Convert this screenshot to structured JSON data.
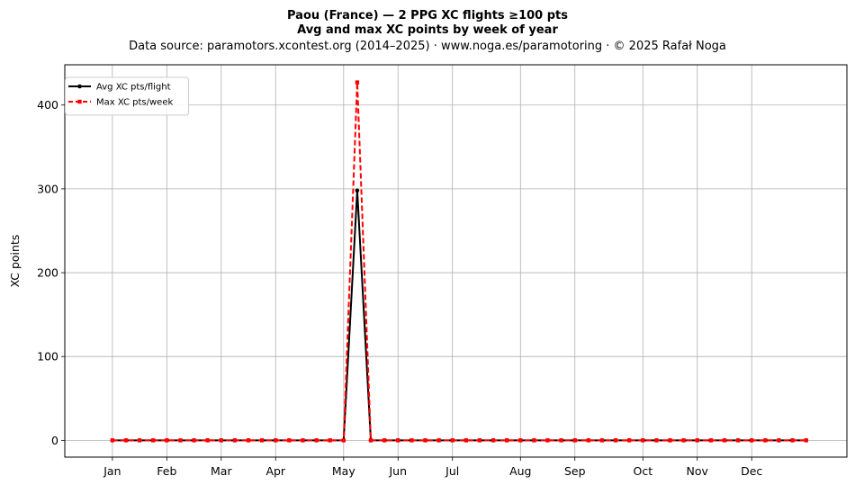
{
  "chart_data": {
    "type": "line",
    "title": "Paou (France)  —  2 PPG XC flights ≥100 pts",
    "subtitle": "Avg and max XC points by week of year",
    "source": "Data source: paramotors.xcontest.org (2014–2025)  ·  www.noga.es/paramotoring  ·  © 2025 Rafał Noga",
    "xlabel": "",
    "ylabel": "XC points",
    "xlim": [
      -2.5,
      55
    ],
    "ylim": [
      -20,
      448
    ],
    "grid": true,
    "legend_position": "top-left",
    "x_ticks": [
      {
        "label": "Jan",
        "week": 1
      },
      {
        "label": "Feb",
        "week": 5
      },
      {
        "label": "Mar",
        "week": 9
      },
      {
        "label": "Apr",
        "week": 13
      },
      {
        "label": "May",
        "week": 18
      },
      {
        "label": "Jun",
        "week": 22
      },
      {
        "label": "Jul",
        "week": 26
      },
      {
        "label": "Aug",
        "week": 31
      },
      {
        "label": "Sep",
        "week": 35
      },
      {
        "label": "Oct",
        "week": 40
      },
      {
        "label": "Nov",
        "week": 44
      },
      {
        "label": "Dec",
        "week": 48
      }
    ],
    "y_ticks": [
      0,
      100,
      200,
      300,
      400
    ],
    "x": [
      1,
      2,
      3,
      4,
      5,
      6,
      7,
      8,
      9,
      10,
      11,
      12,
      13,
      14,
      15,
      16,
      17,
      18,
      19,
      20,
      21,
      22,
      23,
      24,
      25,
      26,
      27,
      28,
      29,
      30,
      31,
      32,
      33,
      34,
      35,
      36,
      37,
      38,
      39,
      40,
      41,
      42,
      43,
      44,
      45,
      46,
      47,
      48,
      49,
      50,
      51,
      52
    ],
    "series": [
      {
        "name": "Avg XC pts/flight",
        "color": "#000000",
        "style": "solid",
        "marker": "circle",
        "values": [
          0,
          0,
          0,
          0,
          0,
          0,
          0,
          0,
          0,
          0,
          0,
          0,
          0,
          0,
          0,
          0,
          0,
          0,
          298,
          0,
          0,
          0,
          0,
          0,
          0,
          0,
          0,
          0,
          0,
          0,
          0,
          0,
          0,
          0,
          0,
          0,
          0,
          0,
          0,
          0,
          0,
          0,
          0,
          0,
          0,
          0,
          0,
          0,
          0,
          0,
          0,
          0
        ]
      },
      {
        "name": "Max XC pts/week",
        "color": "#ff0000",
        "style": "dashed",
        "marker": "square",
        "values": [
          0,
          0,
          0,
          0,
          0,
          0,
          0,
          0,
          0,
          0,
          0,
          0,
          0,
          0,
          0,
          0,
          0,
          0,
          427,
          0,
          0,
          0,
          0,
          0,
          0,
          0,
          0,
          0,
          0,
          0,
          0,
          0,
          0,
          0,
          0,
          0,
          0,
          0,
          0,
          0,
          0,
          0,
          0,
          0,
          0,
          0,
          0,
          0,
          0,
          0,
          0,
          0
        ]
      }
    ]
  }
}
